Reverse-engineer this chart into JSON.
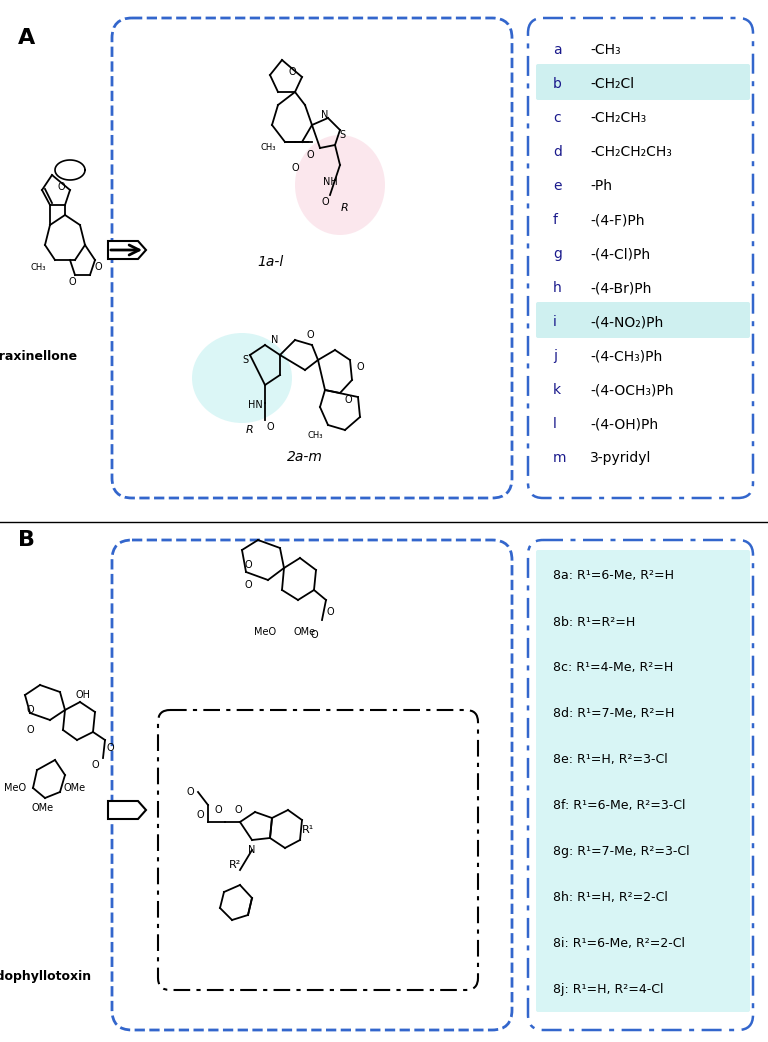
{
  "title_A": "A",
  "title_B": "B",
  "fraxinellone_label": "Fraxinellone",
  "podophyllotoxin_label": "Podophyllotoxin",
  "compound_1al": "1a-l",
  "compound_2am": "2a-m",
  "section_A_box_color": "#2255cc",
  "section_B_box_color": "#2255cc",
  "legend_A_box_color": "#2255cc",
  "legend_B_box_color": "#2255cc",
  "highlight_pink": "#f7c5d0",
  "highlight_cyan": "#c5eef0",
  "bg_cyan_b": "#d8f5f5",
  "bg_white": "#ffffff",
  "legend_A_items": [
    [
      "a",
      "-CH₃"
    ],
    [
      "b",
      "-CH₂Cl"
    ],
    [
      "c",
      "-CH₂CH₃"
    ],
    [
      "d",
      "-CH₂CH₂CH₃"
    ],
    [
      "e",
      "-Ph"
    ],
    [
      "f",
      "-(4-F)Ph"
    ],
    [
      "g",
      "-(4-Cl)Ph"
    ],
    [
      "h",
      "-(4-Br)Ph"
    ],
    [
      "i",
      "-(4-NO₂)Ph"
    ],
    [
      "j",
      "-(4-CH₃)Ph"
    ],
    [
      "k",
      "-(4-OCH₃)Ph"
    ],
    [
      "l",
      "-(4-OH)Ph"
    ],
    [
      "m",
      "3-pyridyl"
    ]
  ],
  "legend_A_highlights": [
    1,
    8
  ],
  "legend_B_items": [
    "8a: R¹=6-Me, R²=H",
    "8b: R¹=R²=H",
    "8c: R¹=4-Me, R²=H",
    "8d: R¹=7-Me, R²=H",
    "8e: R¹=H, R²=3-Cl",
    "8f: R¹=6-Me, R²=3-Cl",
    "8g: R¹=7-Me, R²=3-Cl",
    "8h: R¹=H, R²=2-Cl",
    "8i: R¹=6-Me, R²=2-Cl",
    "8j: R¹=H, R²=4-Cl"
  ]
}
